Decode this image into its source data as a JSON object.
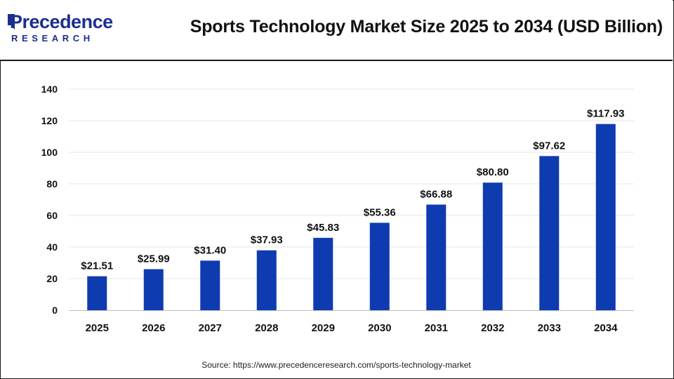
{
  "brand": {
    "name": "Precedence",
    "sub": "RESEARCH"
  },
  "header": {
    "title": "Sports Technology Market Size 2025 to 2034 (USD Billion)"
  },
  "colors": {
    "bar": "#0f3bb0",
    "brand": "#1b2f8f",
    "grid": "#e6e6e6",
    "axis": "#bfbfbf"
  },
  "chart_data": {
    "type": "bar",
    "title": "Sports Technology Market Size 2025 to 2034 (USD Billion)",
    "xlabel": "",
    "ylabel": "",
    "categories": [
      "2025",
      "2026",
      "2027",
      "2028",
      "2029",
      "2030",
      "2031",
      "2032",
      "2033",
      "2034"
    ],
    "values": [
      21.51,
      25.99,
      31.4,
      37.93,
      45.83,
      55.36,
      66.88,
      80.8,
      97.62,
      117.93
    ],
    "data_labels": [
      "$21.51",
      "$25.99",
      "$31.40",
      "$37.93",
      "$45.83",
      "$55.36",
      "$66.88",
      "$80.80",
      "$97.62",
      "$117.93"
    ],
    "yticks": [
      "0",
      "20",
      "40",
      "60",
      "80",
      "100",
      "120",
      "140"
    ],
    "ylim": [
      0,
      140
    ],
    "grid": true,
    "legend": "none"
  },
  "footer": {
    "source": "Source: https://www.precedenceresearch.com/sports-technology-market"
  }
}
